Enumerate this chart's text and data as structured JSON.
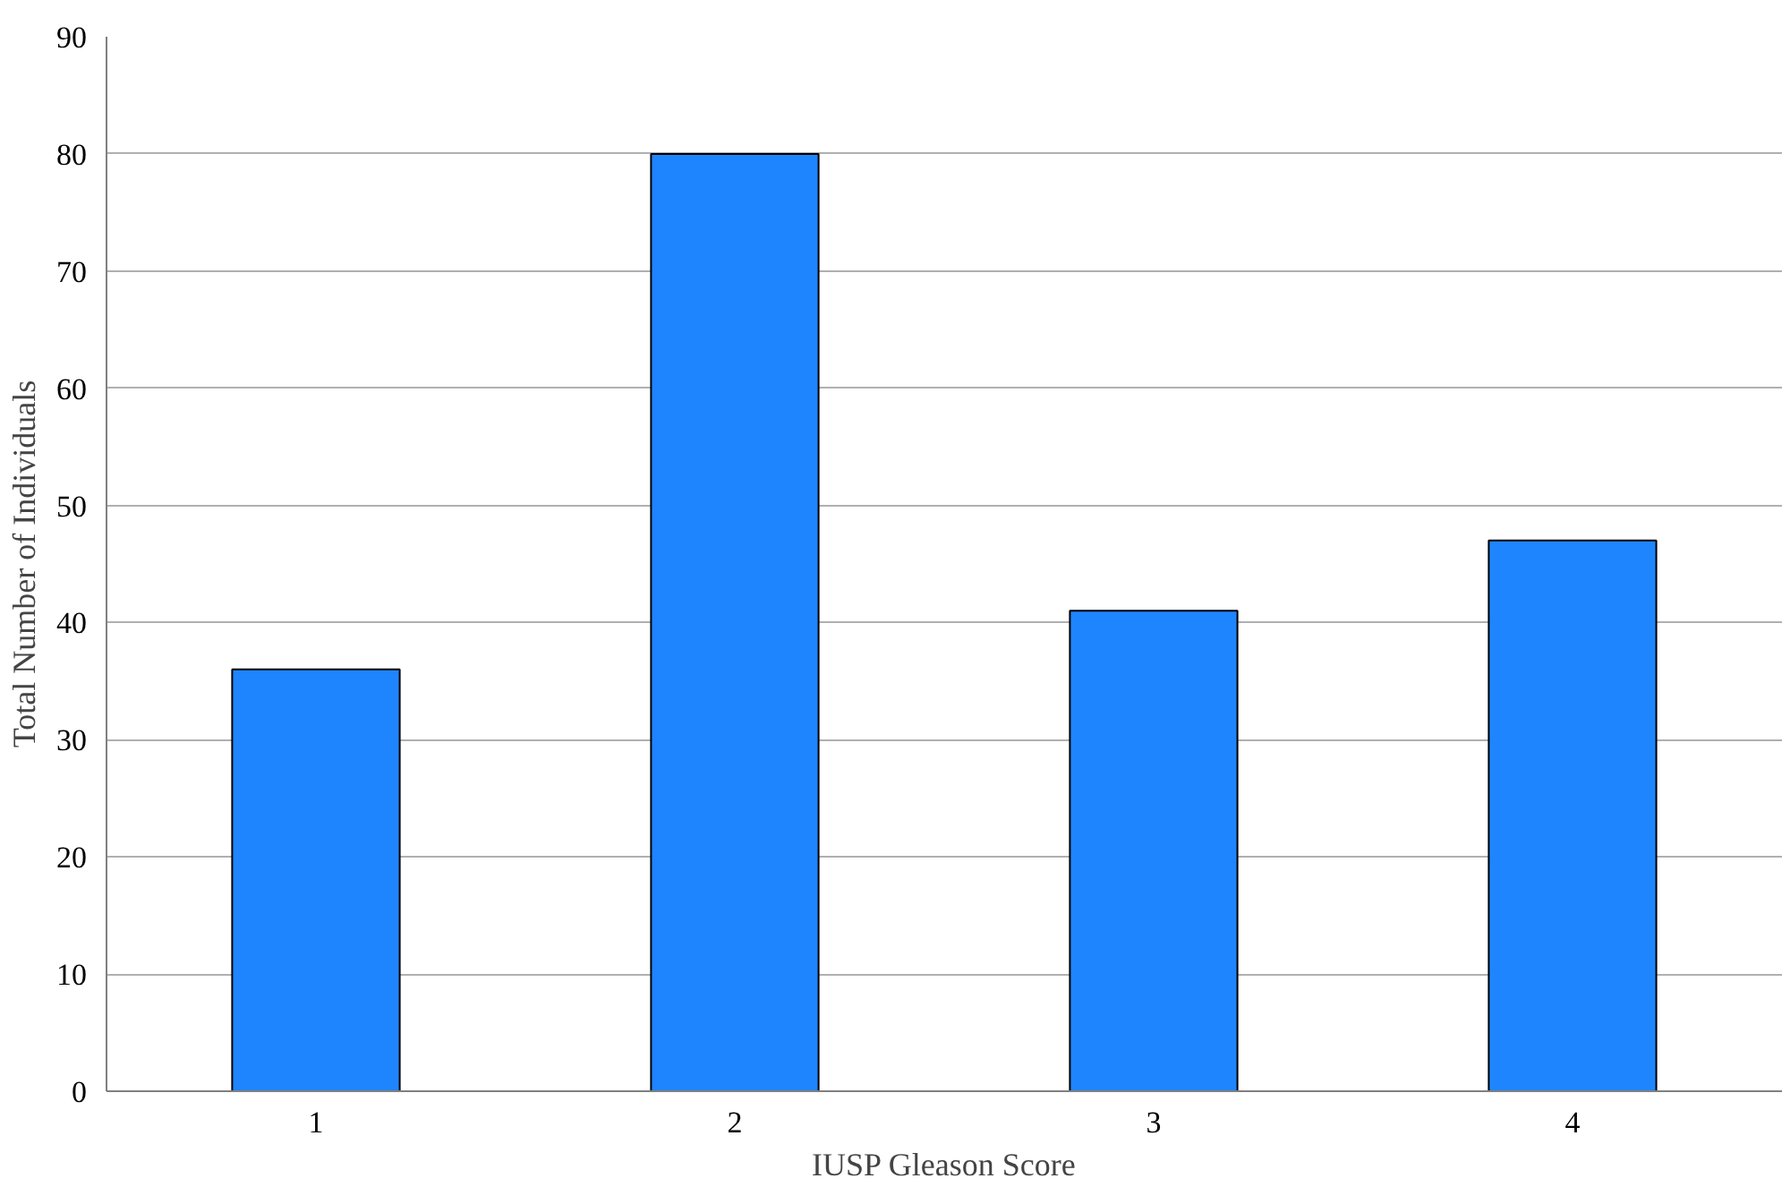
{
  "chart_data": {
    "type": "bar",
    "xlabel": "IUSP Gleason Score",
    "ylabel": "Total Number of Individuals",
    "categories": [
      "1",
      "2",
      "3",
      "4"
    ],
    "values": [
      36,
      80,
      41,
      47
    ],
    "color": "#1f85fe",
    "ylim": [
      0,
      90
    ],
    "yticks": [
      0,
      10,
      20,
      30,
      40,
      50,
      60,
      70,
      80,
      90
    ],
    "grid": "y"
  }
}
